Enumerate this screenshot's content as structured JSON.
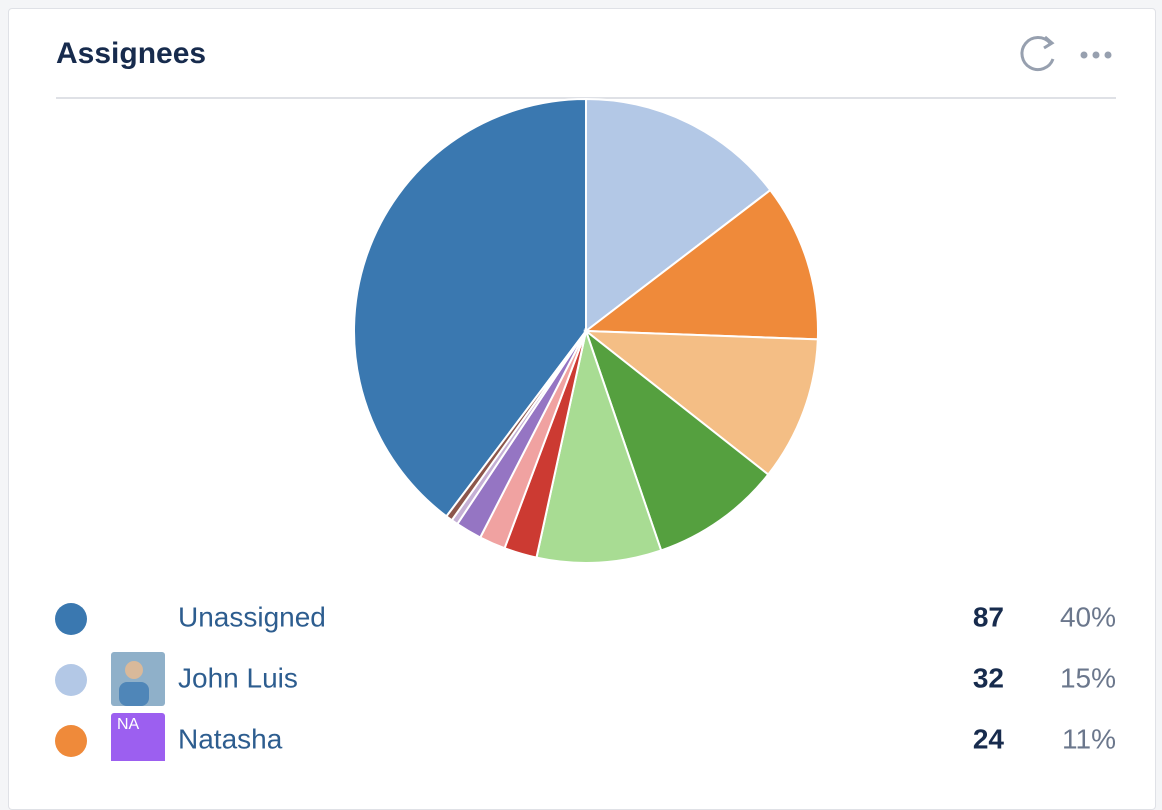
{
  "chart_data": {
    "type": "pie",
    "title": "Assignees",
    "categories": [
      "Unassigned",
      "John Luis",
      "Natasha",
      null,
      null,
      null,
      null,
      null,
      null,
      null,
      null
    ],
    "values": [
      87,
      32,
      24,
      22,
      20,
      19,
      5,
      4,
      4,
      1,
      1
    ],
    "percent_labels": [
      "40%",
      "15%",
      "11%",
      null,
      null,
      null,
      null,
      null,
      null,
      null,
      null
    ],
    "avatar_initials": [
      null,
      null,
      "NA",
      null,
      null,
      null,
      null,
      null,
      null,
      null,
      null
    ],
    "colors": [
      "#3a78b0",
      "#b3c8e6",
      "#ef8a3a",
      "#f4be85",
      "#55a03f",
      "#a8dc93",
      "#cc3a32",
      "#f0a2a1",
      "#9575c3",
      "#c5b0d5",
      "#8c564b"
    ]
  }
}
